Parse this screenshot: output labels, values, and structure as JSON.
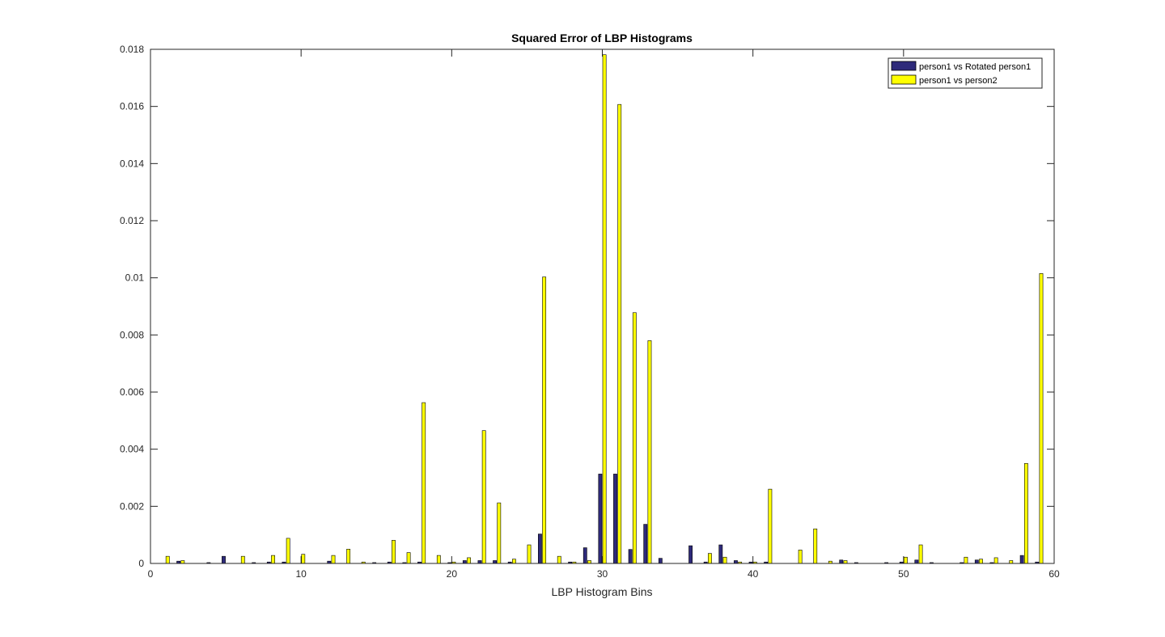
{
  "chart_data": {
    "type": "bar",
    "title": "Squared Error of LBP Histograms",
    "xlabel": "LBP Histogram Bins",
    "ylabel": "",
    "xlim": [
      0,
      60
    ],
    "ylim": [
      0,
      0.018
    ],
    "xticks": [
      "0",
      "10",
      "20",
      "30",
      "40",
      "50",
      "60"
    ],
    "yticks": [
      "0",
      "0.002",
      "0.004",
      "0.006",
      "0.008",
      "0.01",
      "0.012",
      "0.014",
      "0.016",
      "0.018"
    ],
    "legend_position": "top-right",
    "grid": false,
    "categories": [
      1,
      2,
      3,
      4,
      5,
      6,
      7,
      8,
      9,
      10,
      11,
      12,
      13,
      14,
      15,
      16,
      17,
      18,
      19,
      20,
      21,
      22,
      23,
      24,
      25,
      26,
      27,
      28,
      29,
      30,
      31,
      32,
      33,
      34,
      35,
      36,
      37,
      38,
      39,
      40,
      41,
      42,
      43,
      44,
      45,
      46,
      47,
      48,
      49,
      50,
      51,
      52,
      53,
      54,
      55,
      56,
      57,
      58,
      59
    ],
    "series": [
      {
        "name": "person1 vs Rotated person1",
        "color": "#2e2a7a",
        "values": [
          0,
          8e-05,
          0,
          3e-05,
          0.00025,
          0,
          3e-05,
          5e-05,
          5e-05,
          0,
          0,
          8e-05,
          0,
          0,
          3e-05,
          5e-05,
          3e-05,
          5e-05,
          0,
          3e-05,
          0.0001,
          0.0001,
          0.0001,
          5e-05,
          0,
          0.00103,
          0,
          5e-05,
          0.00055,
          0.00313,
          0.00313,
          0.00049,
          0.00137,
          0.00018,
          0,
          0.00062,
          5e-05,
          0.00065,
          0.0001,
          5e-05,
          5e-05,
          0,
          0,
          0,
          0,
          0.00012,
          3e-05,
          0,
          3e-05,
          5e-05,
          0.00012,
          3e-05,
          0,
          3e-05,
          0.00012,
          3e-05,
          0,
          0.00028,
          5e-05
        ]
      },
      {
        "name": "person1 vs person2",
        "color": "#ffff00",
        "values": [
          0.00025,
          0.0001,
          0,
          0,
          0,
          0.00025,
          0,
          0.00028,
          0.00088,
          0.00032,
          0,
          0.00028,
          0.0005,
          5e-05,
          0,
          0.00081,
          0.00038,
          0.00563,
          0.00028,
          5e-05,
          0.0002,
          0.00465,
          0.00212,
          0.00015,
          0.00065,
          0.01003,
          0.00025,
          5e-05,
          0.0001,
          0.01781,
          0.01607,
          0.00878,
          0.0078,
          0,
          0,
          0,
          0.00035,
          0.00022,
          5e-05,
          5e-05,
          0.0026,
          0,
          0.00047,
          0.00121,
          8e-05,
          0.0001,
          0,
          0,
          0,
          0.00022,
          0.00065,
          0,
          0,
          0.00022,
          0.00015,
          0.0002,
          0.0001,
          0.0035,
          0.01015
        ]
      }
    ]
  }
}
